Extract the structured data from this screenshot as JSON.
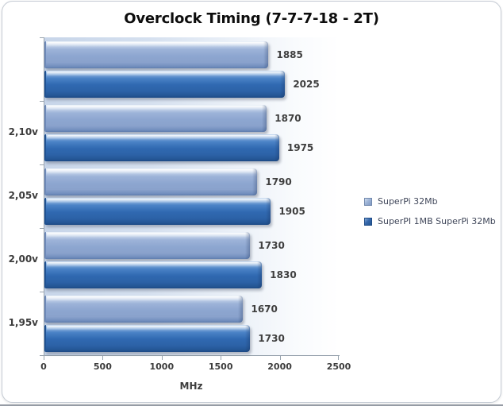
{
  "title": "Overclock Timing (7-7-7-18 - 2T)",
  "chart_data": {
    "type": "bar",
    "orientation": "horizontal",
    "title": "Overclock Timing (7-7-7-18 - 2T)",
    "categories": [
      "",
      "2,10v",
      "2,05v",
      "2,00v",
      "1,95v"
    ],
    "series": [
      {
        "name": "SuperPi 32Mb",
        "color": "#8fa9d0",
        "values": [
          1885,
          1870,
          1790,
          1730,
          1670
        ]
      },
      {
        "name": "SuperPI 1MB SuperPi 32Mb",
        "color": "#2f6ab2",
        "values": [
          2025,
          1975,
          1905,
          1830,
          1730
        ]
      }
    ],
    "xlabel": "MHz",
    "xlim": [
      0,
      2500
    ],
    "xticks": [
      0,
      500,
      1000,
      1500,
      2000,
      2500
    ],
    "value_labels": true,
    "grid": false,
    "legend_position": "right-middle"
  },
  "colors": {
    "series_light": "#8fa9d0",
    "series_dark": "#2f6ab2",
    "plot_background_left": "#c7d5e9",
    "plot_background_right": "#ffffff",
    "axis_line": "#98a3ae",
    "label_text": "#3c3c3c",
    "title_text": "#0d0d0d"
  }
}
